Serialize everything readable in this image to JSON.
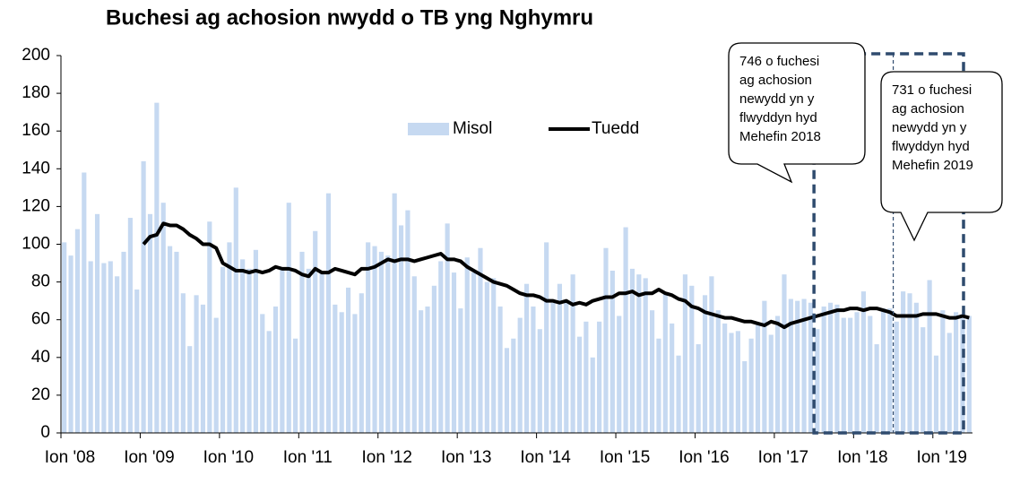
{
  "chart_data": {
    "type": "bar",
    "title": "Buchesi ag achosion nwydd o TB yng Nghymru",
    "categories": [
      "Ion '08",
      null,
      null,
      null,
      null,
      null,
      null,
      null,
      null,
      null,
      null,
      null,
      "Ion '09",
      null,
      null,
      null,
      null,
      null,
      null,
      null,
      null,
      null,
      null,
      null,
      "Ion '10",
      null,
      null,
      null,
      null,
      null,
      null,
      null,
      null,
      null,
      null,
      null,
      "Ion '11",
      null,
      null,
      null,
      null,
      null,
      null,
      null,
      null,
      null,
      null,
      null,
      "Ion '12",
      null,
      null,
      null,
      null,
      null,
      null,
      null,
      null,
      null,
      null,
      null,
      "Ion '13",
      null,
      null,
      null,
      null,
      null,
      null,
      null,
      null,
      null,
      null,
      null,
      "Ion '14",
      null,
      null,
      null,
      null,
      null,
      null,
      null,
      null,
      null,
      null,
      null,
      "Ion '15",
      null,
      null,
      null,
      null,
      null,
      null,
      null,
      null,
      null,
      null,
      null,
      "Ion '16",
      null,
      null,
      null,
      null,
      null,
      null,
      null,
      null,
      null,
      null,
      null,
      "Ion '17",
      null,
      null,
      null,
      null,
      null,
      null,
      null,
      null,
      null,
      null,
      null,
      "Ion '18",
      null,
      null,
      null,
      null,
      null,
      null,
      null,
      null,
      null,
      null,
      null,
      "Ion '19",
      null,
      null,
      null,
      null,
      null
    ],
    "series": [
      {
        "name": "Misol",
        "type": "bar",
        "color": "#c6d9f1",
        "values": [
          101,
          94,
          108,
          138,
          91,
          116,
          90,
          91,
          83,
          96,
          114,
          76,
          144,
          116,
          175,
          122,
          99,
          96,
          74,
          46,
          73,
          68,
          112,
          61,
          88,
          101,
          130,
          92,
          87,
          97,
          63,
          54,
          67,
          87,
          122,
          50,
          96,
          87,
          107,
          85,
          127,
          68,
          64,
          77,
          63,
          74,
          101,
          99,
          96,
          94,
          127,
          110,
          118,
          83,
          65,
          67,
          78,
          91,
          111,
          85,
          66,
          93,
          85,
          98,
          80,
          82,
          67,
          45,
          50,
          61,
          79,
          67,
          55,
          101,
          69,
          79,
          69,
          84,
          51,
          59,
          40,
          59,
          98,
          86,
          62,
          109,
          87,
          84,
          82,
          65,
          50,
          74,
          58,
          41,
          84,
          78,
          47,
          73,
          83,
          65,
          58,
          53,
          54,
          38,
          50,
          58,
          70,
          52,
          62,
          84,
          71,
          70,
          71,
          69,
          55,
          67,
          69,
          68,
          61,
          61,
          64,
          75,
          62,
          47,
          66,
          66,
          59,
          75,
          74,
          69,
          56,
          81,
          41,
          65,
          53,
          64,
          63,
          62
        ]
      },
      {
        "name": "Tuedd",
        "type": "line",
        "color": "#000000",
        "values": [
          null,
          null,
          null,
          null,
          null,
          null,
          null,
          null,
          null,
          null,
          null,
          null,
          100,
          104,
          105,
          111,
          110,
          110,
          108,
          105,
          103,
          100,
          100,
          98,
          90,
          88,
          86,
          86,
          85,
          86,
          85,
          86,
          88,
          87,
          87,
          86,
          84,
          83,
          87,
          85,
          85,
          87,
          86,
          85,
          84,
          87,
          87,
          88,
          90,
          92,
          91,
          92,
          92,
          91,
          92,
          93,
          94,
          95,
          92,
          92,
          91,
          88,
          86,
          84,
          82,
          80,
          79,
          78,
          76,
          74,
          73,
          73,
          72,
          70,
          70,
          69,
          70,
          68,
          69,
          68,
          70,
          71,
          72,
          72,
          74,
          74,
          75,
          73,
          74,
          74,
          76,
          74,
          73,
          71,
          70,
          67,
          66,
          64,
          63,
          62,
          61,
          61,
          60,
          59,
          59,
          58,
          57,
          59,
          58,
          56,
          58,
          59,
          60,
          61,
          62,
          63,
          64,
          65,
          65,
          66,
          66,
          65,
          66,
          66,
          65,
          64,
          62,
          62,
          62,
          62,
          63,
          63,
          63,
          62,
          61,
          61,
          62,
          61
        ]
      }
    ],
    "ylim": [
      0,
      200
    ],
    "yticks": [
      0,
      20,
      40,
      60,
      80,
      100,
      120,
      140,
      160,
      180,
      200
    ],
    "grid": false,
    "legend": "top-center",
    "annotations": [
      {
        "lines": [
          "746 o fuchesi",
          "ag achosion",
          "newydd yn y",
          "flwyddyn hyd",
          "Mehefin 2018"
        ]
      },
      {
        "lines": [
          "731 o fuchesi",
          "ag achosion",
          "newydd yn y",
          "flwyddyn hyd",
          "Mehefin 2019"
        ]
      }
    ]
  }
}
